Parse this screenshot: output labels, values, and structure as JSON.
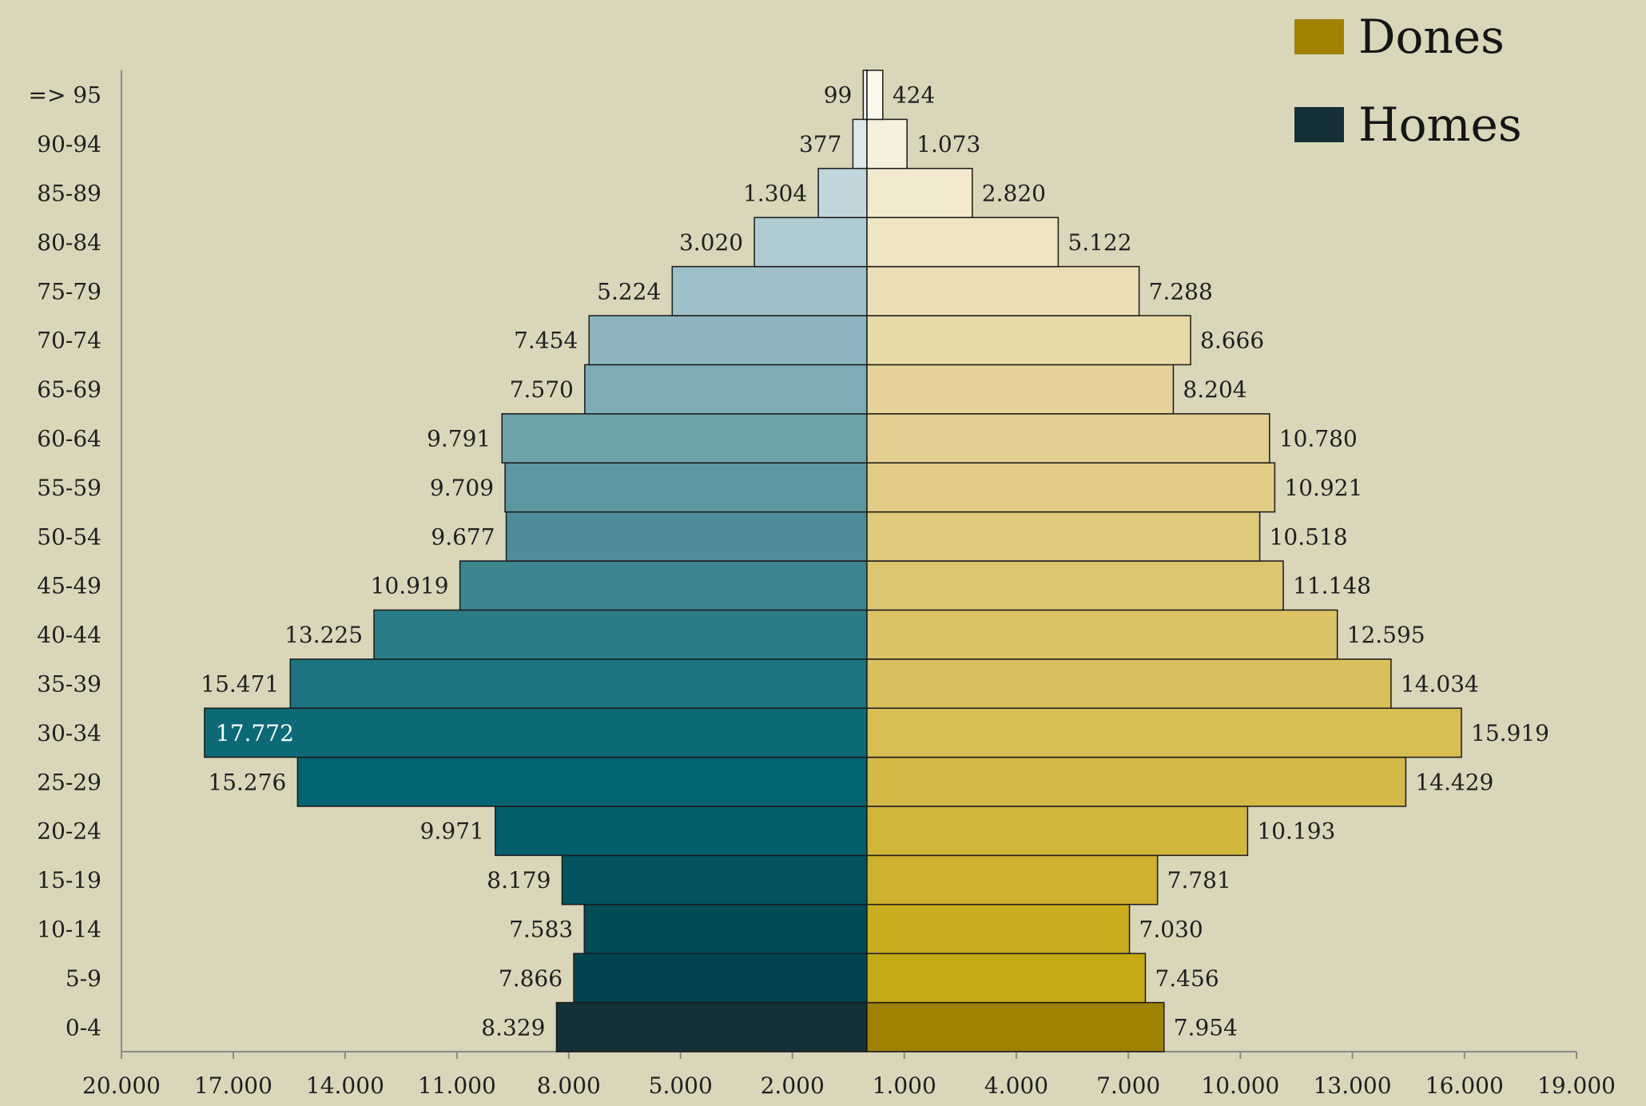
{
  "chart_data": {
    "type": "bar",
    "orientation": "horizontal-pyramid",
    "title": "",
    "xlabel": "",
    "ylabel": "",
    "categories": [
      "0-4",
      "5-9",
      "10-14",
      "15-19",
      "20-24",
      "25-29",
      "30-34",
      "35-39",
      "40-44",
      "45-49",
      "50-54",
      "55-59",
      "60-64",
      "65-69",
      "70-74",
      "75-79",
      "80-84",
      "85-89",
      "90-94",
      "=> 95"
    ],
    "series": [
      {
        "name": "Homes",
        "side": "left",
        "values": [
          8329,
          7866,
          7583,
          8179,
          9971,
          15276,
          17772,
          15471,
          13225,
          10919,
          9677,
          9709,
          9791,
          7570,
          7454,
          5224,
          3020,
          1304,
          377,
          99
        ],
        "value_labels": [
          "8.329",
          "7.866",
          "7.583",
          "8.179",
          "9.971",
          "15.276",
          "17.772",
          "15.471",
          "13.225",
          "10.919",
          "9.677",
          "9.709",
          "9.791",
          "7.570",
          "7.454",
          "5.224",
          "3.020",
          "1.304",
          "377",
          "99"
        ],
        "colors": [
          "#163038",
          "#00444f",
          "#024c56",
          "#035460",
          "#045e6b",
          "#016470",
          "#0c6a77",
          "#1b7480",
          "#2a7c87",
          "#3d858f",
          "#4e8d97",
          "#5d97a0",
          "#6da2aa",
          "#7eacb5",
          "#8eb5bf",
          "#9fc0c9",
          "#afcbd3",
          "#c1d5dc",
          "#dde8ec",
          "#f2f6f7"
        ]
      },
      {
        "name": "Dones",
        "side": "right",
        "values": [
          7954,
          7456,
          7030,
          7781,
          10193,
          14429,
          15919,
          14034,
          12595,
          11148,
          10518,
          10921,
          10780,
          8204,
          8666,
          7288,
          5122,
          2820,
          1073,
          424
        ],
        "value_labels": [
          "7.954",
          "7.456",
          "7.030",
          "7.781",
          "10.193",
          "14.429",
          "15.919",
          "14.034",
          "12.595",
          "11.148",
          "10.518",
          "10.921",
          "10.780",
          "8.204",
          "8.666",
          "7.288",
          "5.122",
          "2.820",
          "1.073",
          "424"
        ],
        "colors": [
          "#9e8200",
          "#c5a915",
          "#cbae20",
          "#ceb22f",
          "#d2b63c",
          "#d4b948",
          "#d7bd52",
          "#d9c05c",
          "#dbc366",
          "#ddc670",
          "#dfc97b",
          "#e1cc85",
          "#e3cf8f",
          "#e5d39a",
          "#e8d9a8",
          "#ebdeb4",
          "#efe4c2",
          "#f2e9cf",
          "#f6f0dd",
          "#fbf8ee"
        ]
      }
    ],
    "left_axis_ticks": [
      "20.000",
      "17.000",
      "14.000",
      "11.000",
      "8.000",
      "5.000",
      "2.000"
    ],
    "right_axis_ticks": [
      "1.000",
      "4.000",
      "7.000",
      "10.000",
      "13.000",
      "16.000",
      "19.000"
    ],
    "xlim_left": [
      0,
      20000
    ],
    "xlim_right": [
      0,
      19000
    ],
    "grid": false,
    "legend": {
      "position": "top-right",
      "items": [
        {
          "label": "Dones",
          "color": "#9e8200"
        },
        {
          "label": "Homes",
          "color": "#163038"
        }
      ]
    },
    "background": "#d9d6b9"
  }
}
